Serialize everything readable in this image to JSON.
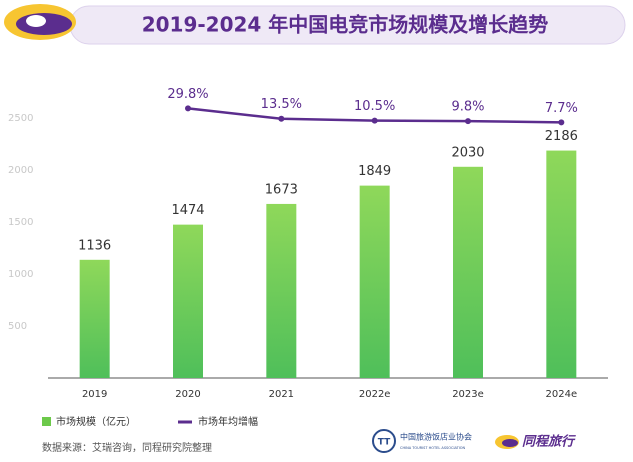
{
  "chart_data": {
    "type": "bar",
    "title": "2019-2024 年中国电竞市场规模及增长趋势",
    "categories": [
      "2019",
      "2020",
      "2021",
      "2022e",
      "2023e",
      "2024e"
    ],
    "series": [
      {
        "name": "市场规模（亿元）",
        "color": "#6cc94a",
        "values": [
          1136,
          1474,
          1673,
          1849,
          2030,
          2186
        ]
      },
      {
        "name": "市场年均增幅",
        "color": "#5b2d8e",
        "type": "line",
        "axis": "y2",
        "values": [
          null,
          29.8,
          13.5,
          10.5,
          9.8,
          7.7
        ],
        "value_labels": [
          null,
          "29.8%",
          "13.5%",
          "10.5%",
          "9.8%",
          "7.7%"
        ]
      }
    ],
    "ylim": [
      0,
      2720
    ],
    "yticks": [
      500,
      1000,
      1500,
      2000,
      2500
    ],
    "y2lim": [
      -396,
      51
    ],
    "grid": false,
    "legend": "bottom-left"
  },
  "source": "数据来源：艾瑞咨询，同程研究院整理",
  "logos": {
    "association": "中国旅游饭店业协会",
    "association_en": "CHINA TOURIST HOTEL ASSOCIATION",
    "brand": "同程旅行"
  }
}
